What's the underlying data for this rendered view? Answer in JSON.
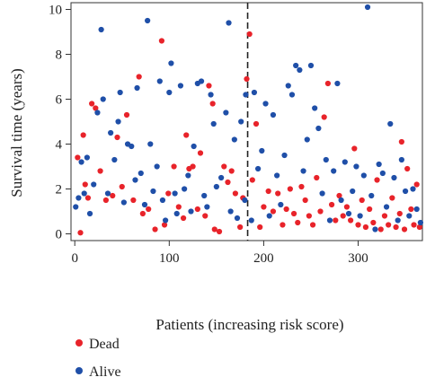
{
  "chart_data": {
    "type": "scatter",
    "xlabel": "Patients (increasing risk score)",
    "ylabel": "Survival time (years)",
    "xlim": [
      -4,
      368
    ],
    "ylim": [
      -0.3,
      10.3
    ],
    "xticks": [
      0,
      100,
      200,
      300
    ],
    "yticks": [
      0,
      2,
      4,
      6,
      8,
      10
    ],
    "cutoff_x": 183,
    "legend": "bottom-left",
    "colors": {
      "Dead": "#e8232a",
      "Alive": "#1f4fa8"
    },
    "series": [
      {
        "name": "Dead",
        "points": [
          [
            3,
            3.4
          ],
          [
            6,
            0.05
          ],
          [
            9,
            4.4
          ],
          [
            11,
            2.2
          ],
          [
            14,
            1.6
          ],
          [
            18,
            5.8
          ],
          [
            22,
            5.6
          ],
          [
            27,
            2.8
          ],
          [
            33,
            1.5
          ],
          [
            40,
            1.7
          ],
          [
            45,
            4.3
          ],
          [
            50,
            2.1
          ],
          [
            55,
            5.3
          ],
          [
            62,
            1.5
          ],
          [
            68,
            7.0
          ],
          [
            72,
            0.9
          ],
          [
            78,
            1.1
          ],
          [
            85,
            0.2
          ],
          [
            92,
            8.6
          ],
          [
            95,
            0.4
          ],
          [
            99,
            1.8
          ],
          [
            105,
            3.0
          ],
          [
            110,
            1.2
          ],
          [
            115,
            0.7
          ],
          [
            118,
            4.4
          ],
          [
            121,
            2.9
          ],
          [
            125,
            3.0
          ],
          [
            130,
            1.1
          ],
          [
            133,
            3.6
          ],
          [
            138,
            0.8
          ],
          [
            142,
            6.6
          ],
          [
            146,
            5.8
          ],
          [
            148,
            0.2
          ],
          [
            153,
            0.1
          ],
          [
            158,
            3.0
          ],
          [
            162,
            2.3
          ],
          [
            166,
            2.8
          ],
          [
            170,
            1.8
          ],
          [
            175,
            0.3
          ],
          [
            178,
            1.6
          ],
          [
            182,
            6.9
          ],
          [
            185,
            8.9
          ],
          [
            188,
            2.4
          ],
          [
            192,
            4.9
          ],
          [
            196,
            0.3
          ],
          [
            200,
            1.2
          ],
          [
            205,
            1.9
          ],
          [
            210,
            1.0
          ],
          [
            215,
            1.8
          ],
          [
            220,
            0.4
          ],
          [
            224,
            1.1
          ],
          [
            228,
            2.0
          ],
          [
            232,
            0.9
          ],
          [
            236,
            0.5
          ],
          [
            240,
            2.1
          ],
          [
            244,
            1.5
          ],
          [
            248,
            0.8
          ],
          [
            252,
            0.4
          ],
          [
            256,
            2.5
          ],
          [
            260,
            1.0
          ],
          [
            264,
            5.2
          ],
          [
            268,
            6.7
          ],
          [
            272,
            1.3
          ],
          [
            276,
            0.6
          ],
          [
            280,
            1.7
          ],
          [
            284,
            0.8
          ],
          [
            288,
            1.2
          ],
          [
            292,
            0.6
          ],
          [
            296,
            3.8
          ],
          [
            300,
            0.4
          ],
          [
            304,
            1.5
          ],
          [
            308,
            0.3
          ],
          [
            312,
            1.1
          ],
          [
            316,
            0.5
          ],
          [
            320,
            2.4
          ],
          [
            324,
            0.2
          ],
          [
            328,
            0.8
          ],
          [
            332,
            0.4
          ],
          [
            336,
            1.6
          ],
          [
            340,
            0.3
          ],
          [
            344,
            0.9
          ],
          [
            346,
            4.1
          ],
          [
            349,
            0.2
          ],
          [
            352,
            2.9
          ],
          [
            356,
            1.1
          ],
          [
            359,
            0.4
          ],
          [
            362,
            2.2
          ],
          [
            365,
            0.3
          ]
        ]
      },
      {
        "name": "Alive",
        "points": [
          [
            1,
            1.2
          ],
          [
            4,
            1.6
          ],
          [
            7,
            3.2
          ],
          [
            10,
            1.8
          ],
          [
            13,
            3.4
          ],
          [
            16,
            0.9
          ],
          [
            20,
            2.2
          ],
          [
            24,
            5.4
          ],
          [
            28,
            9.1
          ],
          [
            30,
            6.0
          ],
          [
            35,
            1.8
          ],
          [
            38,
            4.5
          ],
          [
            42,
            3.3
          ],
          [
            46,
            5.0
          ],
          [
            48,
            6.3
          ],
          [
            52,
            1.4
          ],
          [
            56,
            4.0
          ],
          [
            60,
            3.9
          ],
          [
            64,
            2.4
          ],
          [
            66,
            6.5
          ],
          [
            70,
            2.7
          ],
          [
            74,
            1.3
          ],
          [
            77,
            9.5
          ],
          [
            80,
            4.0
          ],
          [
            83,
            1.9
          ],
          [
            87,
            3.0
          ],
          [
            90,
            6.8
          ],
          [
            93,
            1.5
          ],
          [
            96,
            0.6
          ],
          [
            100,
            6.3
          ],
          [
            102,
            7.6
          ],
          [
            106,
            1.8
          ],
          [
            108,
            0.9
          ],
          [
            112,
            6.6
          ],
          [
            116,
            2.0
          ],
          [
            120,
            2.6
          ],
          [
            123,
            1.0
          ],
          [
            126,
            3.9
          ],
          [
            130,
            6.7
          ],
          [
            134,
            6.8
          ],
          [
            137,
            1.7
          ],
          [
            140,
            1.2
          ],
          [
            144,
            6.2
          ],
          [
            147,
            4.9
          ],
          [
            150,
            2.1
          ],
          [
            155,
            2.5
          ],
          [
            160,
            5.4
          ],
          [
            163,
            9.4
          ],
          [
            165,
            1.0
          ],
          [
            169,
            4.2
          ],
          [
            172,
            0.7
          ],
          [
            176,
            5.0
          ],
          [
            180,
            1.5
          ],
          [
            181,
            6.2
          ],
          [
            187,
            0.6
          ],
          [
            190,
            6.3
          ],
          [
            194,
            2.9
          ],
          [
            198,
            3.7
          ],
          [
            202,
            5.8
          ],
          [
            206,
            0.8
          ],
          [
            210,
            5.3
          ],
          [
            214,
            2.6
          ],
          [
            218,
            1.3
          ],
          [
            222,
            3.5
          ],
          [
            226,
            6.6
          ],
          [
            230,
            6.2
          ],
          [
            234,
            7.5
          ],
          [
            238,
            7.3
          ],
          [
            242,
            2.8
          ],
          [
            246,
            4.2
          ],
          [
            250,
            7.5
          ],
          [
            254,
            5.6
          ],
          [
            258,
            4.7
          ],
          [
            262,
            1.8
          ],
          [
            266,
            3.3
          ],
          [
            270,
            0.6
          ],
          [
            274,
            2.8
          ],
          [
            278,
            6.7
          ],
          [
            282,
            1.5
          ],
          [
            286,
            3.2
          ],
          [
            290,
            0.9
          ],
          [
            294,
            1.9
          ],
          [
            298,
            3.0
          ],
          [
            302,
            0.8
          ],
          [
            306,
            2.6
          ],
          [
            310,
            10.1
          ],
          [
            314,
            1.7
          ],
          [
            318,
            0.2
          ],
          [
            322,
            3.1
          ],
          [
            326,
            2.7
          ],
          [
            330,
            1.2
          ],
          [
            334,
            4.9
          ],
          [
            338,
            2.5
          ],
          [
            342,
            0.6
          ],
          [
            346,
            3.3
          ],
          [
            350,
            1.9
          ],
          [
            354,
            0.8
          ],
          [
            358,
            2.0
          ],
          [
            362,
            1.1
          ],
          [
            366,
            0.5
          ]
        ]
      }
    ]
  }
}
